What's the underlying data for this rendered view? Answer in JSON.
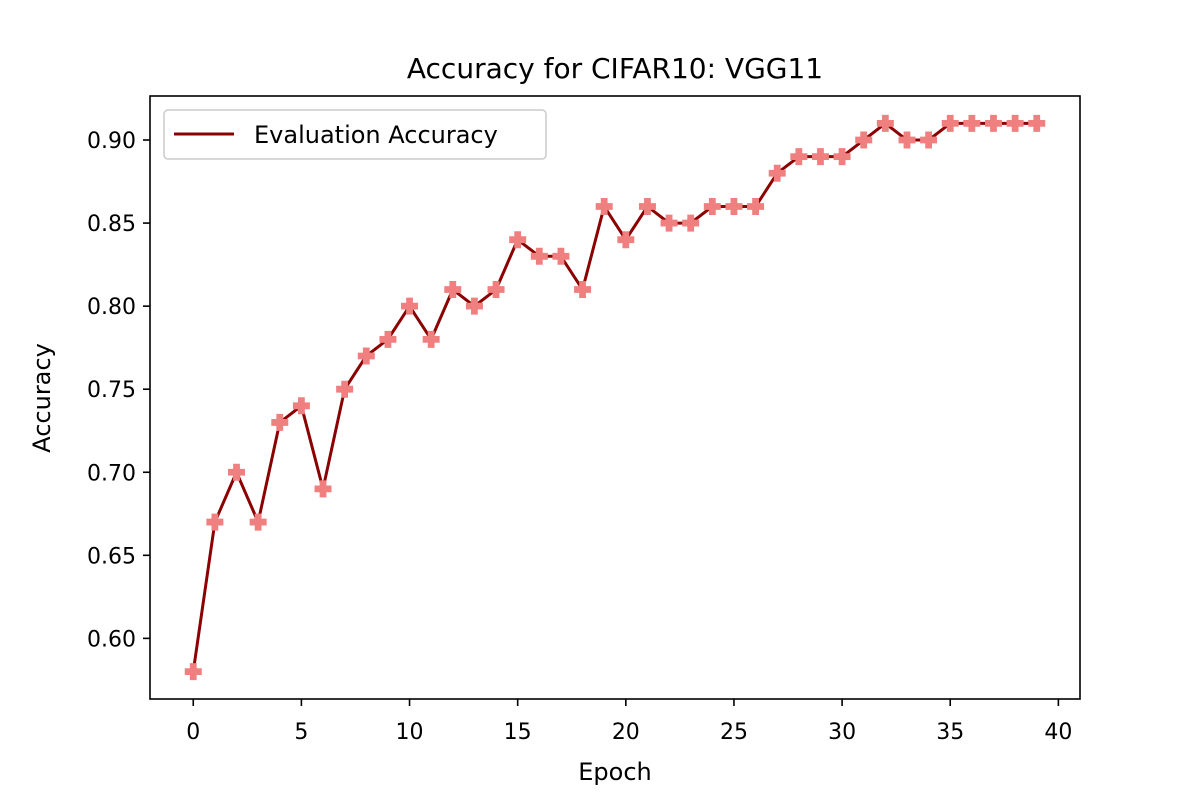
{
  "chart_data": {
    "type": "line",
    "title": "Accuracy for CIFAR10: VGG11",
    "xlabel": "Epoch",
    "ylabel": "Accuracy",
    "xlim": [
      -2,
      41
    ],
    "ylim": [
      0.5635,
      0.9265
    ],
    "xticks": [
      0,
      5,
      10,
      15,
      20,
      25,
      30,
      35,
      40
    ],
    "yticks": [
      0.6,
      0.65,
      0.7,
      0.75,
      0.8,
      0.85,
      0.9
    ],
    "ytick_labels": [
      "0.60",
      "0.65",
      "0.70",
      "0.75",
      "0.80",
      "0.85",
      "0.90"
    ],
    "grid": false,
    "legend": {
      "position": "top-left"
    },
    "series": [
      {
        "name": "Evaluation Accuracy",
        "line_color": "#8b0000",
        "marker_color": "#f08080",
        "marker": "plus",
        "x": [
          0,
          1,
          2,
          3,
          4,
          5,
          6,
          7,
          8,
          9,
          10,
          11,
          12,
          13,
          14,
          15,
          16,
          17,
          18,
          19,
          20,
          21,
          22,
          23,
          24,
          25,
          26,
          27,
          28,
          29,
          30,
          31,
          32,
          33,
          34,
          35,
          36,
          37,
          38,
          39
        ],
        "y": [
          0.58,
          0.67,
          0.7,
          0.67,
          0.73,
          0.74,
          0.69,
          0.75,
          0.77,
          0.78,
          0.8,
          0.78,
          0.81,
          0.8,
          0.81,
          0.84,
          0.83,
          0.83,
          0.81,
          0.86,
          0.84,
          0.86,
          0.85,
          0.85,
          0.86,
          0.86,
          0.86,
          0.88,
          0.89,
          0.89,
          0.89,
          0.9,
          0.91,
          0.9,
          0.9,
          0.91,
          0.91,
          0.91,
          0.91,
          0.91
        ]
      }
    ]
  }
}
